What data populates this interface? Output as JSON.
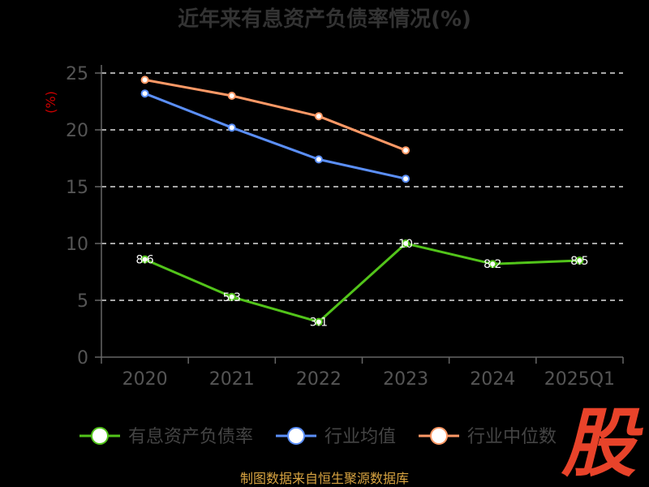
{
  "chart_data": {
    "type": "line",
    "title": "近年来有息资产负债率情况(%)",
    "ylabel": "(%)",
    "xlabel": "",
    "categories": [
      "2020",
      "2021",
      "2022",
      "2023",
      "2024",
      "2025Q1"
    ],
    "ylim": [
      0,
      25
    ],
    "yticks": [
      "0",
      "5",
      "10",
      "15",
      "20",
      "25"
    ],
    "grid": true,
    "legend_position": "bottom",
    "series": [
      {
        "name": "有息资产负债率",
        "color": "#52c41a",
        "values": [
          8.6,
          5.3,
          3.1,
          10.0,
          8.2,
          8.5
        ]
      },
      {
        "name": "行业均值",
        "color": "#5b8ff9",
        "values": [
          23.2,
          20.2,
          17.4,
          15.7,
          null,
          null
        ]
      },
      {
        "name": "行业中位数",
        "color": "#ff9966",
        "values": [
          24.4,
          23.0,
          21.2,
          18.2,
          null,
          null
        ]
      }
    ]
  },
  "footer": {
    "source": "制图数据来自恒生聚源数据库"
  },
  "watermark": {
    "text": "股",
    "color": "#e8432a"
  }
}
